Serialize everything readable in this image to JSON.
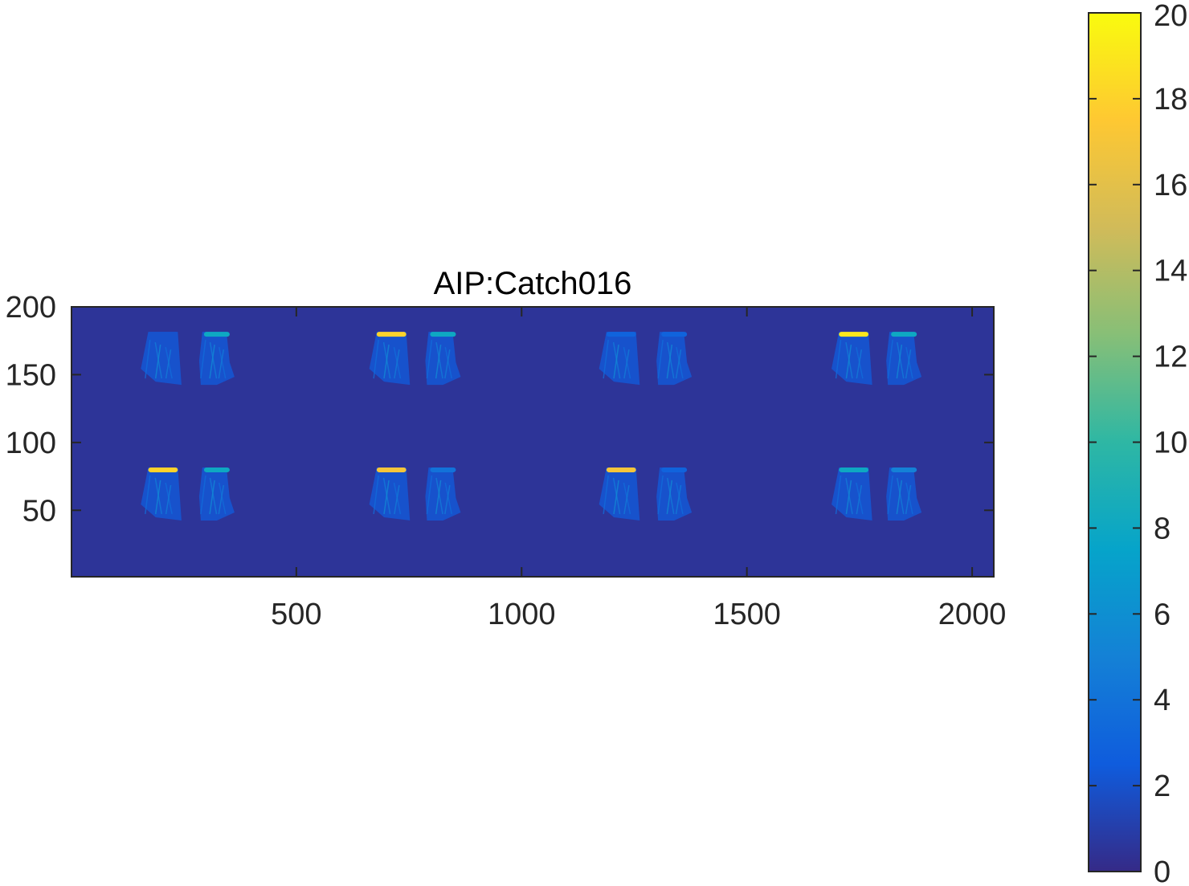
{
  "chart_data": {
    "type": "heatmap",
    "title": "AIP:Catch016",
    "xlabel": "",
    "ylabel": "",
    "xlim": [
      1,
      2048
    ],
    "ylim": [
      1,
      200
    ],
    "x_ticks": [
      500,
      1000,
      1500,
      2000
    ],
    "y_ticks": [
      50,
      100,
      150,
      200
    ],
    "x_tick_labels": [
      "500",
      "1000",
      "1500",
      "2000"
    ],
    "y_tick_labels": [
      "50",
      "100",
      "150",
      "200"
    ],
    "background_value": 0.5,
    "colorbar": {
      "range": [
        0,
        20
      ],
      "ticks": [
        0,
        2,
        4,
        6,
        8,
        10,
        12,
        14,
        16,
        18,
        20
      ],
      "tick_labels": [
        "0",
        "2",
        "4",
        "6",
        "8",
        "10",
        "12",
        "14",
        "16",
        "18",
        "20"
      ],
      "colormap": "parula",
      "colors": [
        "#352a87",
        "#0f5cdd",
        "#1481d6",
        "#06a4ca",
        "#2eb7a4",
        "#87bf77",
        "#d1bb59",
        "#fec832",
        "#f9fb0e"
      ]
    },
    "regions": [
      {
        "x_center": 200,
        "y_center": 165,
        "peak": 2
      },
      {
        "x_center": 320,
        "y_center": 165,
        "peak": 8
      },
      {
        "x_center": 707,
        "y_center": 165,
        "peak": 18
      },
      {
        "x_center": 822,
        "y_center": 165,
        "peak": 8
      },
      {
        "x_center": 1217,
        "y_center": 165,
        "peak": 3
      },
      {
        "x_center": 1335,
        "y_center": 165,
        "peak": 3
      },
      {
        "x_center": 1733,
        "y_center": 165,
        "peak": 19
      },
      {
        "x_center": 1845,
        "y_center": 165,
        "peak": 8
      },
      {
        "x_center": 200,
        "y_center": 65,
        "peak": 18
      },
      {
        "x_center": 320,
        "y_center": 65,
        "peak": 8
      },
      {
        "x_center": 707,
        "y_center": 65,
        "peak": 17
      },
      {
        "x_center": 822,
        "y_center": 65,
        "peak": 4
      },
      {
        "x_center": 1217,
        "y_center": 65,
        "peak": 17
      },
      {
        "x_center": 1335,
        "y_center": 65,
        "peak": 3
      },
      {
        "x_center": 1733,
        "y_center": 65,
        "peak": 8
      },
      {
        "x_center": 1845,
        "y_center": 65,
        "peak": 5
      }
    ]
  }
}
